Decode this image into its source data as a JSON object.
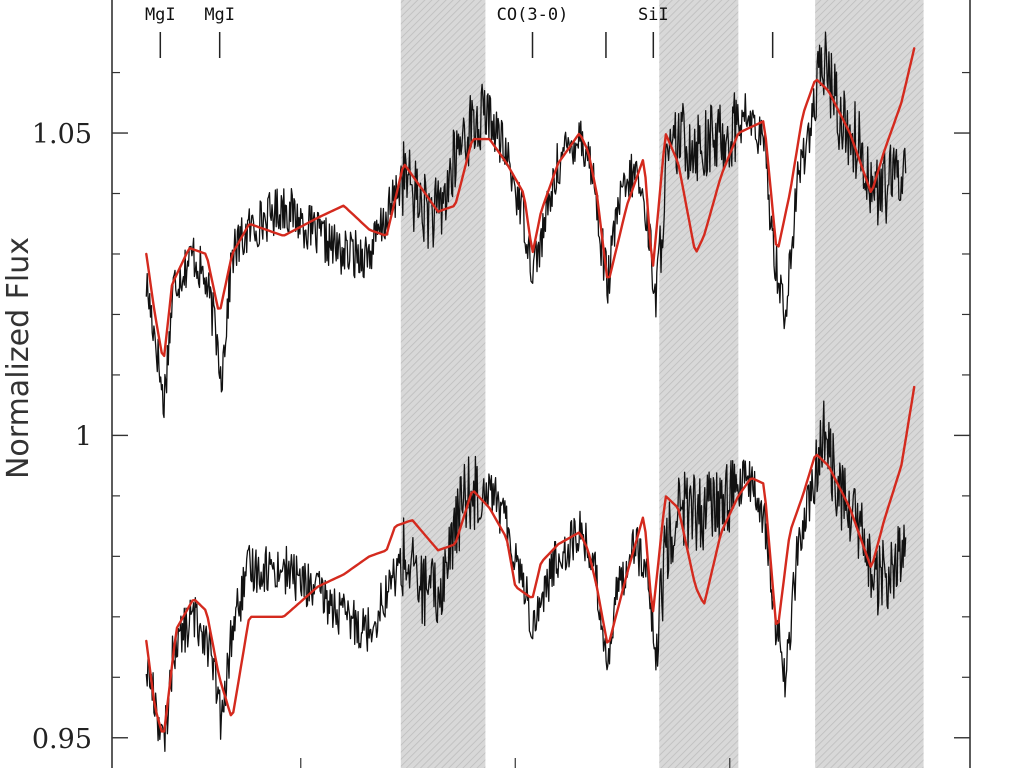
{
  "chart_data": {
    "type": "line",
    "title": "",
    "xlabel": "",
    "ylabel": "Normalized Flux",
    "ylim": [
      0.945,
      1.072
    ],
    "y_ticks_labeled": [
      {
        "value": 1.05,
        "label": "1.05"
      },
      {
        "value": 1.0,
        "label": "1"
      },
      {
        "value": 0.95,
        "label": "0.95"
      }
    ],
    "y_minor_ticks": [
      0.96,
      0.97,
      0.98,
      0.99,
      1.01,
      1.02,
      1.03,
      1.04,
      1.06
    ],
    "shaded_bands": [
      {
        "x_start": 0.3366,
        "x_end": 0.4352
      },
      {
        "x_start": 0.6378,
        "x_end": 0.73
      },
      {
        "x_start": 0.8195,
        "x_end": 0.9459
      }
    ],
    "line_labels": [
      {
        "text": "MgI",
        "x": 0.0563
      },
      {
        "text": "MgI",
        "x": 0.1255
      },
      {
        "text": "CO(3-0)",
        "x": 0.4901
      },
      {
        "text": "",
        "x": 0.5757
      },
      {
        "text": "SiI",
        "x": 0.6309
      },
      {
        "text": "",
        "x": 0.77
      }
    ],
    "series": [
      {
        "group": "upper",
        "kind": "observed",
        "color": "#111111",
        "noise": 0.004,
        "x": [
          0.04,
          0.052,
          0.06,
          0.072,
          0.095,
          0.11,
          0.12,
          0.128,
          0.14,
          0.16,
          0.2,
          0.24,
          0.27,
          0.3,
          0.32,
          0.34,
          0.36,
          0.38,
          0.41,
          0.44,
          0.46,
          0.48,
          0.49,
          0.5,
          0.52,
          0.545,
          0.56,
          0.57,
          0.578,
          0.59,
          0.61,
          0.625,
          0.634,
          0.645,
          0.66,
          0.69,
          0.72,
          0.74,
          0.76,
          0.772,
          0.785,
          0.8,
          0.815,
          0.83,
          0.85,
          0.87,
          0.89,
          0.91,
          0.925
        ],
        "y": [
          1.025,
          1.015,
          1.005,
          1.025,
          1.03,
          1.025,
          1.018,
          1.01,
          1.03,
          1.034,
          1.038,
          1.033,
          1.03,
          1.03,
          1.036,
          1.043,
          1.038,
          1.036,
          1.05,
          1.053,
          1.046,
          1.036,
          1.028,
          1.032,
          1.045,
          1.05,
          1.044,
          1.032,
          1.025,
          1.038,
          1.044,
          1.035,
          1.022,
          1.043,
          1.049,
          1.048,
          1.05,
          1.053,
          1.048,
          1.03,
          1.02,
          1.043,
          1.052,
          1.062,
          1.052,
          1.048,
          1.04,
          1.042,
          1.045
        ]
      },
      {
        "group": "upper",
        "kind": "model",
        "color": "#d42a1e",
        "x": [
          0.04,
          0.05,
          0.06,
          0.07,
          0.09,
          0.11,
          0.125,
          0.14,
          0.16,
          0.2,
          0.24,
          0.27,
          0.3,
          0.32,
          0.34,
          0.35,
          0.38,
          0.4,
          0.42,
          0.44,
          0.46,
          0.48,
          0.49,
          0.5,
          0.52,
          0.545,
          0.555,
          0.565,
          0.578,
          0.6,
          0.62,
          0.63,
          0.645,
          0.66,
          0.68,
          0.69,
          0.71,
          0.73,
          0.745,
          0.76,
          0.775,
          0.79,
          0.805,
          0.82,
          0.835,
          0.86,
          0.885,
          0.9,
          0.92,
          0.935
        ],
        "y": [
          1.03,
          1.02,
          1.012,
          1.025,
          1.031,
          1.03,
          1.02,
          1.03,
          1.035,
          1.033,
          1.036,
          1.038,
          1.034,
          1.033,
          1.045,
          1.043,
          1.037,
          1.038,
          1.049,
          1.049,
          1.045,
          1.04,
          1.03,
          1.037,
          1.045,
          1.05,
          1.047,
          1.04,
          1.025,
          1.038,
          1.046,
          1.027,
          1.05,
          1.045,
          1.03,
          1.033,
          1.043,
          1.05,
          1.051,
          1.052,
          1.03,
          1.04,
          1.053,
          1.059,
          1.057,
          1.05,
          1.04,
          1.047,
          1.055,
          1.064
        ]
      },
      {
        "group": "lower",
        "kind": "observed",
        "color": "#111111",
        "noise": 0.004,
        "x": [
          0.04,
          0.052,
          0.06,
          0.072,
          0.095,
          0.11,
          0.12,
          0.128,
          0.14,
          0.16,
          0.2,
          0.24,
          0.27,
          0.3,
          0.32,
          0.34,
          0.36,
          0.38,
          0.41,
          0.44,
          0.46,
          0.48,
          0.49,
          0.5,
          0.52,
          0.545,
          0.56,
          0.57,
          0.578,
          0.59,
          0.61,
          0.625,
          0.634,
          0.645,
          0.66,
          0.69,
          0.72,
          0.74,
          0.76,
          0.772,
          0.785,
          0.8,
          0.815,
          0.83,
          0.85,
          0.87,
          0.89,
          0.91,
          0.925
        ],
        "y": [
          0.962,
          0.955,
          0.948,
          0.965,
          0.97,
          0.967,
          0.96,
          0.952,
          0.968,
          0.978,
          0.978,
          0.974,
          0.97,
          0.968,
          0.974,
          0.98,
          0.975,
          0.973,
          0.99,
          0.992,
          0.985,
          0.976,
          0.968,
          0.973,
          0.98,
          0.984,
          0.98,
          0.97,
          0.963,
          0.975,
          0.983,
          0.975,
          0.962,
          0.981,
          0.988,
          0.987,
          0.99,
          0.993,
          0.987,
          0.97,
          0.96,
          0.982,
          0.99,
          1.0,
          0.99,
          0.985,
          0.975,
          0.978,
          0.98
        ]
      },
      {
        "group": "lower",
        "kind": "model",
        "color": "#d42a1e",
        "x": [
          0.04,
          0.05,
          0.06,
          0.075,
          0.095,
          0.11,
          0.125,
          0.14,
          0.16,
          0.2,
          0.24,
          0.27,
          0.3,
          0.32,
          0.33,
          0.35,
          0.38,
          0.4,
          0.42,
          0.44,
          0.46,
          0.47,
          0.49,
          0.5,
          0.52,
          0.545,
          0.555,
          0.565,
          0.578,
          0.6,
          0.62,
          0.63,
          0.645,
          0.66,
          0.68,
          0.69,
          0.71,
          0.73,
          0.745,
          0.76,
          0.775,
          0.79,
          0.805,
          0.82,
          0.835,
          0.86,
          0.885,
          0.9,
          0.92,
          0.935
        ],
        "y": [
          0.966,
          0.955,
          0.95,
          0.968,
          0.973,
          0.971,
          0.96,
          0.953,
          0.97,
          0.97,
          0.975,
          0.977,
          0.98,
          0.981,
          0.985,
          0.986,
          0.981,
          0.982,
          0.991,
          0.988,
          0.983,
          0.975,
          0.973,
          0.979,
          0.982,
          0.984,
          0.981,
          0.975,
          0.965,
          0.977,
          0.987,
          0.97,
          0.99,
          0.988,
          0.975,
          0.972,
          0.984,
          0.99,
          0.993,
          0.992,
          0.967,
          0.984,
          0.99,
          0.997,
          0.995,
          0.988,
          0.978,
          0.986,
          0.995,
          1.008
        ]
      }
    ]
  }
}
